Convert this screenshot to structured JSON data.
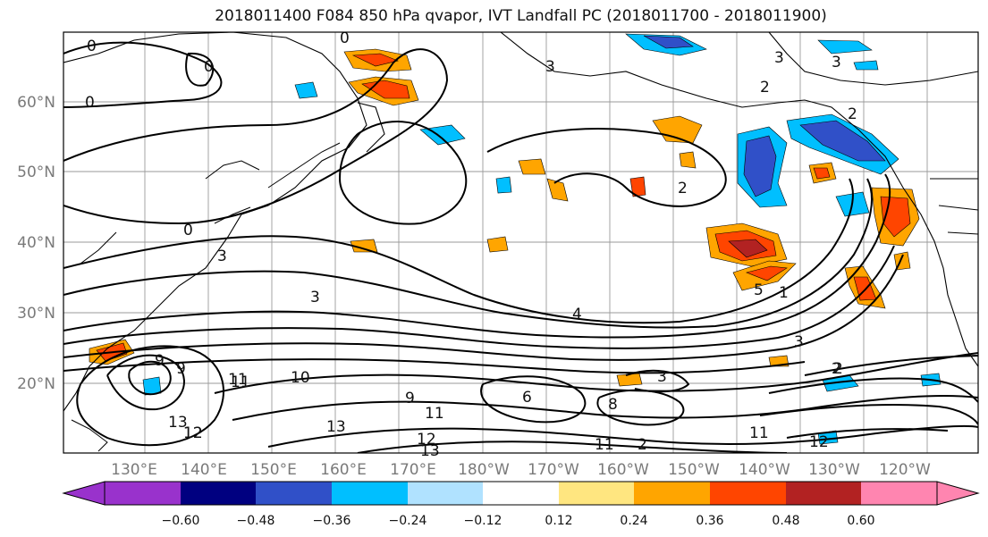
{
  "title": "2018011400 F084 850 hPa qvapor, IVT Landfall PC (2018011700 - 2018011900)",
  "map": {
    "lat_labels": [
      "60°N",
      "50°N",
      "40°N",
      "30°N",
      "20°N"
    ],
    "lon_labels": [
      "130°E",
      "140°E",
      "150°E",
      "160°E",
      "170°E",
      "180°W",
      "170°W",
      "160°W",
      "150°W",
      "140°W",
      "130°W",
      "120°W"
    ],
    "contour_labels": [
      "0",
      "0",
      "0",
      "0",
      "0",
      "3",
      "3",
      "3",
      "3",
      "2",
      "2",
      "2",
      "2",
      "3",
      "4",
      "1",
      "3",
      "5",
      "9",
      "9",
      "9",
      "10",
      "11",
      "11",
      "11",
      "11",
      "12",
      "12",
      "12",
      "13",
      "13",
      "13",
      "6",
      "8",
      "2",
      "11",
      "12",
      "3",
      "2"
    ]
  },
  "colorbar": {
    "tick_labels": [
      "−0.60",
      "−0.48",
      "−0.36",
      "−0.24",
      "−0.12",
      "0.12",
      "0.24",
      "0.36",
      "0.48",
      "0.60"
    ],
    "colors": [
      "#9932cc",
      "#000080",
      "#3050c8",
      "#00bfff",
      "#b0e2ff",
      "#ffffff",
      "#ffe680",
      "#ffa500",
      "#ff4500",
      "#b22222",
      "#ff85b0"
    ]
  }
}
